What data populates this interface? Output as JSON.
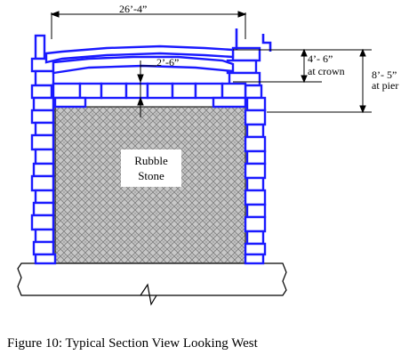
{
  "figure": {
    "caption": "Figure 10: Typical Section View Looking West",
    "fill_label": [
      "Rubble",
      "Stone"
    ],
    "dimensions": {
      "span": "26’-4”",
      "deck_thickness": "2’-6”",
      "crown_height": "4’- 6”",
      "crown_note": "at crown",
      "pier_height": "8’- 5”",
      "pier_note": "at pier"
    },
    "colors": {
      "masonry": "#1a1aff",
      "fill": "#b8b8b8",
      "line": "#000000"
    }
  }
}
